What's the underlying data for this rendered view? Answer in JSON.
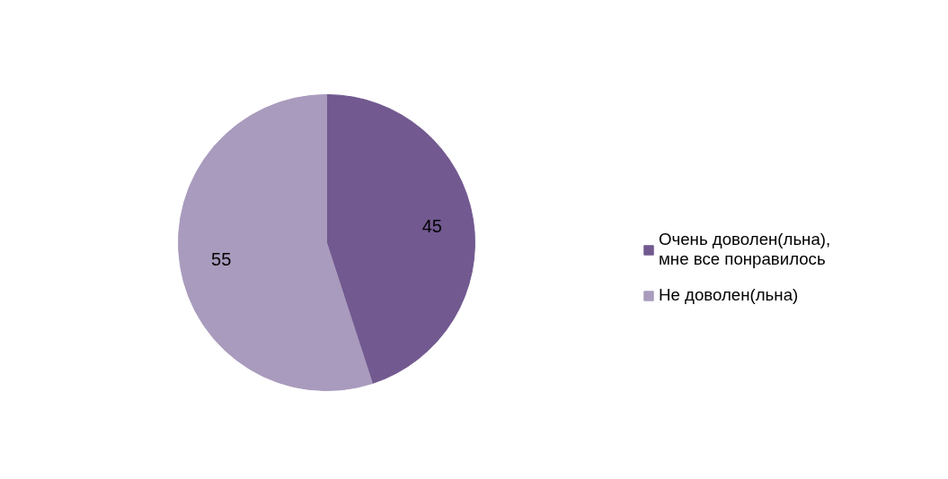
{
  "chart_data": {
    "type": "pie",
    "categories": [
      "Очень доволен(льна), мне все понравилось",
      "Не доволен(льна)"
    ],
    "values": [
      45,
      55
    ],
    "colors": [
      "#725990",
      "#a99bbd"
    ],
    "data_labels": true,
    "legend": "right"
  }
}
